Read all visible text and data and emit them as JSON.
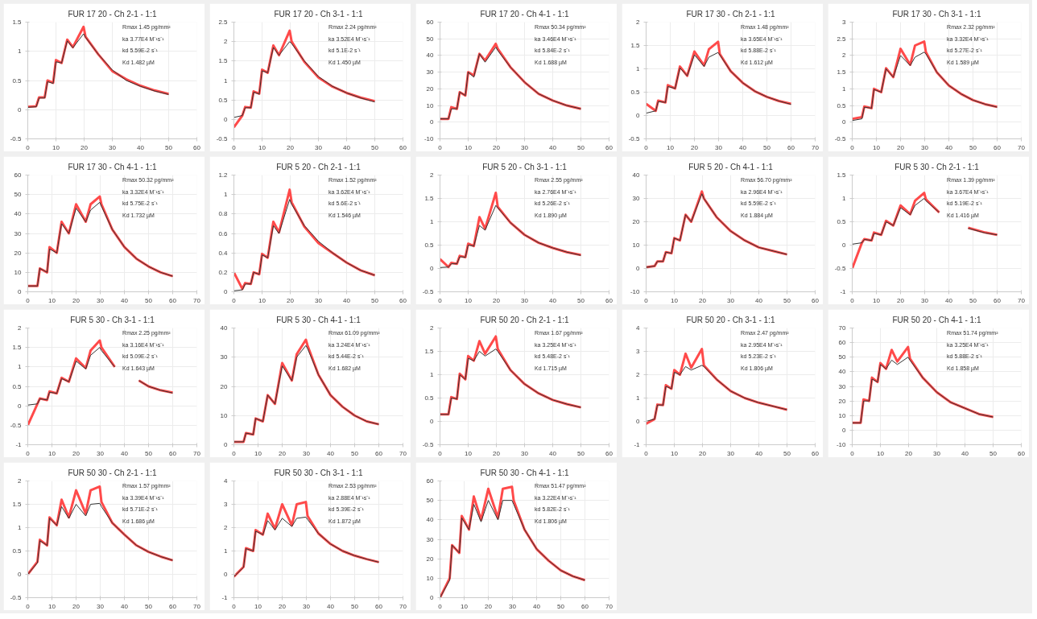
{
  "chart_data": [
    {
      "type": "line",
      "title": "FUR 17 20 - Ch 2-1 - 1:1",
      "xlim": [
        0,
        60
      ],
      "xticks": [
        0,
        10,
        20,
        30,
        40,
        50,
        60
      ],
      "ylim": [
        -0.5,
        1.5
      ],
      "yticks": [
        -0.5,
        0,
        0.5,
        1,
        1.5
      ],
      "grid": true,
      "annotations": [
        "Rmax 1.45 pg/mm²",
        "ka 3.77E4 M⁻¹s⁻¹",
        "kd 5.59E-2 s⁻¹",
        "Kd 1.482 µM"
      ],
      "x": [
        0,
        3,
        4,
        6,
        7,
        9,
        10,
        12,
        14,
        16,
        19.8,
        20.5,
        25,
        30,
        35,
        40,
        45,
        50
      ],
      "series": [
        {
          "color": "#ff4a4a",
          "values": [
            0.05,
            0.06,
            0.21,
            0.21,
            0.5,
            0.46,
            0.85,
            0.8,
            1.2,
            1.07,
            1.42,
            1.25,
            0.95,
            0.66,
            0.52,
            0.41,
            0.33,
            0.27
          ]
        },
        {
          "color": "#333333",
          "values": [
            0.04,
            0.05,
            0.2,
            0.2,
            0.48,
            0.45,
            0.82,
            0.8,
            1.18,
            1.06,
            1.3,
            1.24,
            0.95,
            0.68,
            0.5,
            0.4,
            0.32,
            0.26
          ]
        }
      ]
    },
    {
      "type": "line",
      "title": "FUR 17 20 - Ch 3-1 - 1:1",
      "xlim": [
        0,
        60
      ],
      "xticks": [
        0,
        10,
        20,
        30,
        40,
        50,
        60
      ],
      "ylim": [
        -0.5,
        2.5
      ],
      "yticks": [
        -0.5,
        0,
        0.5,
        1,
        1.5,
        2,
        2.5
      ],
      "grid": true,
      "annotations": [
        "Rmax 2.24 pg/mm²",
        "ka 3.52E4 M⁻¹s⁻¹",
        "kd 5.1E-2 s⁻¹",
        "Kd 1.450 µM"
      ],
      "x": [
        0,
        3,
        4,
        6,
        7,
        9,
        10,
        12,
        14,
        16,
        19.8,
        20.5,
        25,
        30,
        35,
        40,
        45,
        50
      ],
      "series": [
        {
          "color": "#ff4a4a",
          "values": [
            -0.2,
            0.1,
            0.32,
            0.3,
            0.72,
            0.66,
            1.28,
            1.2,
            1.9,
            1.65,
            2.28,
            2.0,
            1.48,
            1.08,
            0.84,
            0.68,
            0.56,
            0.47
          ]
        },
        {
          "color": "#333333",
          "values": [
            0.05,
            0.1,
            0.3,
            0.3,
            0.7,
            0.65,
            1.25,
            1.2,
            1.85,
            1.65,
            2.0,
            1.95,
            1.5,
            1.1,
            0.85,
            0.68,
            0.55,
            0.45
          ]
        }
      ]
    },
    {
      "type": "line",
      "title": "FUR 17 20 - Ch 4-1 - 1:1",
      "xlim": [
        0,
        60
      ],
      "xticks": [
        0,
        10,
        20,
        30,
        40,
        50,
        60
      ],
      "ylim": [
        -10,
        60
      ],
      "yticks": [
        -10,
        0,
        10,
        20,
        30,
        40,
        50,
        60
      ],
      "grid": true,
      "annotations": [
        "Rmax 50.34 pg/mm²",
        "ka 3.46E4 M⁻¹s⁻¹",
        "kd 5.84E-2 s⁻¹",
        "Kd 1.688 µM"
      ],
      "x": [
        0,
        3,
        4,
        6,
        7,
        9,
        10,
        12,
        14,
        16,
        19.8,
        20.5,
        25,
        30,
        35,
        40,
        45,
        50
      ],
      "series": [
        {
          "color": "#ff4a4a",
          "values": [
            2,
            2,
            9,
            8,
            18,
            16,
            30,
            28,
            41,
            37,
            47,
            44,
            33,
            24,
            17,
            13,
            10,
            8
          ]
        },
        {
          "color": "#333333",
          "values": [
            2,
            2,
            8,
            8,
            18,
            16,
            30,
            27,
            41,
            36,
            45,
            43,
            33,
            24,
            17,
            13,
            10,
            8
          ]
        }
      ]
    },
    {
      "type": "line",
      "title": "FUR 17 30 - Ch 2-1 - 1:1",
      "xlim": [
        0,
        70
      ],
      "xticks": [
        0,
        10,
        20,
        30,
        40,
        50,
        60,
        70
      ],
      "ylim": [
        -0.5,
        2
      ],
      "yticks": [
        -0.5,
        0,
        0.5,
        1,
        1.5,
        2
      ],
      "grid": true,
      "annotations": [
        "Rmax 1.48 pg/mm²",
        "ka 3.65E4 M⁻¹s⁻¹",
        "kd 5.88E-2 s⁻¹",
        "Kd 1.612 µM"
      ],
      "x": [
        0,
        4,
        5,
        8,
        9,
        12,
        14,
        17,
        20,
        24,
        26,
        29.8,
        30.5,
        35,
        40,
        45,
        50,
        55,
        60
      ],
      "series": [
        {
          "color": "#ff4a4a",
          "values": [
            0.25,
            0.1,
            0.32,
            0.28,
            0.65,
            0.58,
            1.05,
            0.85,
            1.37,
            1.07,
            1.42,
            1.58,
            1.32,
            0.95,
            0.7,
            0.52,
            0.4,
            0.31,
            0.25
          ]
        },
        {
          "color": "#333333",
          "values": [
            0.05,
            0.1,
            0.3,
            0.28,
            0.62,
            0.58,
            1.02,
            0.85,
            1.3,
            1.05,
            1.25,
            1.35,
            1.3,
            0.95,
            0.7,
            0.52,
            0.4,
            0.31,
            0.24
          ]
        }
      ]
    },
    {
      "type": "line",
      "title": "FUR 17 30 - Ch 3-1 - 1:1",
      "xlim": [
        0,
        70
      ],
      "xticks": [
        0,
        10,
        20,
        30,
        40,
        50,
        60,
        70
      ],
      "ylim": [
        -0.5,
        3
      ],
      "yticks": [
        -0.5,
        0,
        0.5,
        1,
        1.5,
        2,
        2.5,
        3
      ],
      "grid": true,
      "annotations": [
        "Rmax 2.32 pg/mm²",
        "ka 3.32E4 M⁻¹s⁻¹",
        "kd 5.27E-2 s⁻¹",
        "Kd 1.589 µM"
      ],
      "x": [
        0,
        4,
        5,
        8,
        9,
        12,
        14,
        17,
        20,
        24,
        26,
        29.8,
        30.5,
        35,
        40,
        45,
        50,
        55,
        60
      ],
      "series": [
        {
          "color": "#ff4a4a",
          "values": [
            0.1,
            0.15,
            0.47,
            0.42,
            1.0,
            0.9,
            1.62,
            1.35,
            2.2,
            1.72,
            2.3,
            2.42,
            2.1,
            1.5,
            1.1,
            0.85,
            0.66,
            0.54,
            0.46
          ]
        },
        {
          "color": "#333333",
          "values": [
            0.05,
            0.1,
            0.45,
            0.42,
            0.98,
            0.9,
            1.6,
            1.35,
            2.0,
            1.7,
            1.95,
            2.1,
            2.05,
            1.5,
            1.1,
            0.85,
            0.66,
            0.54,
            0.45
          ]
        }
      ]
    },
    {
      "type": "line",
      "title": "FUR 17 30 - Ch 4-1 - 1:1",
      "xlim": [
        0,
        70
      ],
      "xticks": [
        0,
        10,
        20,
        30,
        40,
        50,
        60,
        70
      ],
      "ylim": [
        0,
        60
      ],
      "yticks": [
        0,
        10,
        20,
        30,
        40,
        50,
        60
      ],
      "grid": true,
      "annotations": [
        "Rmax 50.32 pg/mm²",
        "ka 3.32E4 M⁻¹s⁻¹",
        "kd 5.75E-2 s⁻¹",
        "Kd 1.732 µM"
      ],
      "x": [
        0,
        4,
        5,
        8,
        9,
        12,
        14,
        17,
        20,
        24,
        26,
        29.8,
        30.5,
        35,
        40,
        45,
        50,
        55,
        60
      ],
      "series": [
        {
          "color": "#ff4a4a",
          "values": [
            3,
            3,
            12,
            10,
            23,
            20,
            36,
            30,
            45,
            36,
            45,
            49,
            45,
            32,
            23,
            17,
            13,
            10,
            8
          ]
        },
        {
          "color": "#333333",
          "values": [
            3,
            3,
            12,
            10,
            22,
            20,
            35,
            30,
            43,
            36,
            42,
            46,
            44,
            32,
            23,
            17,
            13,
            10,
            8
          ]
        }
      ]
    },
    {
      "type": "line",
      "title": "FUR 5 20 - Ch 2-1 - 1:1",
      "xlim": [
        0,
        60
      ],
      "xticks": [
        0,
        10,
        20,
        30,
        40,
        50,
        60
      ],
      "ylim": [
        0,
        1.2
      ],
      "yticks": [
        0,
        0.2,
        0.4,
        0.6,
        0.8,
        1,
        1.2
      ],
      "grid": true,
      "annotations": [
        "Rmax 1.52 pg/mm²",
        "ka 3.62E4 M⁻¹s⁻¹",
        "kd 5.6E-2 s⁻¹",
        "Kd 1.546 µM"
      ],
      "x": [
        0,
        3,
        4,
        6,
        7,
        9,
        10,
        12,
        14,
        16,
        19.8,
        20.5,
        25,
        30,
        35,
        40,
        45,
        50
      ],
      "series": [
        {
          "color": "#ff4a4a",
          "values": [
            0.2,
            0.03,
            0.09,
            0.08,
            0.2,
            0.18,
            0.39,
            0.35,
            0.72,
            0.61,
            1.05,
            0.92,
            0.67,
            0.5,
            0.4,
            0.3,
            0.22,
            0.17
          ]
        },
        {
          "color": "#333333",
          "values": [
            0.01,
            0.02,
            0.08,
            0.08,
            0.2,
            0.18,
            0.38,
            0.35,
            0.68,
            0.6,
            0.95,
            0.9,
            0.68,
            0.52,
            0.4,
            0.3,
            0.22,
            0.17
          ]
        }
      ]
    },
    {
      "type": "line",
      "title": "FUR 5 20 - Ch 3-1 - 1:1",
      "xlim": [
        0,
        60
      ],
      "xticks": [
        0,
        10,
        20,
        30,
        40,
        50,
        60
      ],
      "ylim": [
        -0.5,
        2
      ],
      "yticks": [
        -0.5,
        0,
        0.5,
        1,
        1.5,
        2
      ],
      "grid": true,
      "annotations": [
        "Rmax 2.55 pg/mm²",
        "ka 2.76E4 M⁻¹s⁻¹",
        "kd 5.26E-2 s⁻¹",
        "Kd 1.890 µM"
      ],
      "x": [
        0,
        3,
        4,
        6,
        7,
        9,
        10,
        12,
        14,
        16,
        19.8,
        20.5,
        25,
        30,
        35,
        40,
        45,
        50
      ],
      "series": [
        {
          "color": "#ff4a4a",
          "values": [
            0.2,
            0.03,
            0.12,
            0.1,
            0.27,
            0.24,
            0.53,
            0.48,
            1.1,
            0.85,
            1.62,
            1.32,
            0.98,
            0.72,
            0.55,
            0.44,
            0.35,
            0.29
          ]
        },
        {
          "color": "#333333",
          "values": [
            0.02,
            0.03,
            0.1,
            0.1,
            0.25,
            0.24,
            0.5,
            0.48,
            0.92,
            0.82,
            1.35,
            1.3,
            0.98,
            0.72,
            0.55,
            0.44,
            0.35,
            0.28
          ]
        }
      ]
    },
    {
      "type": "line",
      "title": "FUR 5 20 - Ch 4-1 - 1:1",
      "xlim": [
        0,
        60
      ],
      "xticks": [
        0,
        10,
        20,
        30,
        40,
        50,
        60
      ],
      "ylim": [
        -10,
        40
      ],
      "yticks": [
        -10,
        0,
        10,
        20,
        30,
        40
      ],
      "grid": true,
      "annotations": [
        "Rmax 56.70 pg/mm²",
        "ka 2.96E4 M⁻¹s⁻¹",
        "kd 5.59E-2 s⁻¹",
        "Kd 1.884 µM"
      ],
      "x": [
        0,
        3,
        4,
        6,
        7,
        9,
        10,
        12,
        14,
        16,
        19.8,
        20.5,
        25,
        30,
        35,
        40,
        45,
        50
      ],
      "series": [
        {
          "color": "#ff4a4a",
          "values": [
            0.5,
            1,
            3,
            3,
            7,
            6.5,
            13,
            12,
            23,
            20,
            33,
            30,
            22,
            16,
            12,
            9,
            7.5,
            6
          ]
        },
        {
          "color": "#333333",
          "values": [
            0.5,
            1,
            3,
            3,
            7,
            6.5,
            13,
            12,
            23,
            20,
            32,
            30,
            22,
            16,
            12,
            9,
            7.5,
            6
          ]
        }
      ]
    },
    {
      "type": "line",
      "title": "FUR 5 30 - Ch 2-1 - 1:1",
      "xlim": [
        0,
        70
      ],
      "xticks": [
        0,
        10,
        20,
        30,
        40,
        50,
        60,
        70
      ],
      "ylim": [
        -1,
        1.5
      ],
      "yticks": [
        -1,
        -0.5,
        0,
        0.5,
        1,
        1.5
      ],
      "grid": true,
      "annotations": [
        "Rmax 1.39 pg/mm²",
        "ka 3.67E4 M⁻¹s⁻¹",
        "kd 5.19E-2 s⁻¹",
        "Kd 1.416 µM"
      ],
      "x": [
        0,
        4,
        5,
        8,
        9,
        12,
        14,
        17,
        20,
        24,
        26,
        29.8,
        30.5,
        36,
        40,
        45,
        48,
        55,
        60
      ],
      "series": [
        {
          "color": "#ff4a4a",
          "values": [
            -0.5,
            0.05,
            0.13,
            0.1,
            0.27,
            0.22,
            0.52,
            0.42,
            0.85,
            0.66,
            0.95,
            1.12,
            0.98,
            0.7,
            null,
            null,
            0.37,
            0.27,
            0.22
          ]
        },
        {
          "color": "#333333",
          "values": [
            0.02,
            0.05,
            0.12,
            0.1,
            0.25,
            0.22,
            0.5,
            0.42,
            0.8,
            0.65,
            0.85,
            1.0,
            0.95,
            0.7,
            null,
            null,
            0.36,
            0.26,
            0.22
          ]
        }
      ]
    },
    {
      "type": "line",
      "title": "FUR 5 30 - Ch 3-1 - 1:1",
      "xlim": [
        0,
        70
      ],
      "xticks": [
        0,
        10,
        20,
        30,
        40,
        50,
        60,
        70
      ],
      "ylim": [
        -1,
        2
      ],
      "yticks": [
        -1,
        -0.5,
        0,
        0.5,
        1,
        1.5,
        2
      ],
      "grid": true,
      "annotations": [
        "Rmax 2.25 pg/mm²",
        "ka 3.16E4 M⁻¹s⁻¹",
        "kd 5.09E-2 s⁻¹",
        "Kd 1.643 µM"
      ],
      "x": [
        0,
        4,
        5,
        8,
        9,
        12,
        14,
        17,
        20,
        24,
        26,
        29.8,
        30.5,
        36,
        40,
        46,
        50,
        55,
        60
      ],
      "series": [
        {
          "color": "#ff4a4a",
          "values": [
            -0.5,
            0.05,
            0.19,
            0.15,
            0.37,
            0.32,
            0.72,
            0.62,
            1.22,
            0.97,
            1.42,
            1.68,
            1.5,
            1.0,
            null,
            0.65,
            0.5,
            0.4,
            0.34
          ]
        },
        {
          "color": "#333333",
          "values": [
            0.02,
            0.05,
            0.18,
            0.15,
            0.35,
            0.32,
            0.7,
            0.62,
            1.15,
            0.95,
            1.3,
            1.5,
            1.42,
            1.0,
            null,
            0.65,
            0.5,
            0.4,
            0.33
          ]
        }
      ]
    },
    {
      "type": "line",
      "title": "FUR 5 30 - Ch 4-1 - 1:1",
      "xlim": [
        0,
        70
      ],
      "xticks": [
        0,
        10,
        20,
        30,
        40,
        50,
        60,
        70
      ],
      "ylim": [
        0,
        40
      ],
      "yticks": [
        0,
        10,
        20,
        30,
        40
      ],
      "grid": true,
      "annotations": [
        "Rmax 61.09 pg/mm²",
        "ka 3.24E4 M⁻¹s⁻¹",
        "kd 5.44E-2 s⁻¹",
        "Kd 1.682 µM"
      ],
      "x": [
        0,
        4,
        5,
        8,
        9,
        12,
        14,
        17,
        20,
        24,
        26,
        29.8,
        30.5,
        35,
        40,
        45,
        50,
        55,
        60
      ],
      "series": [
        {
          "color": "#ff4a4a",
          "values": [
            1,
            1,
            4,
            3.5,
            9,
            8,
            17,
            14,
            28,
            22,
            31,
            36,
            34,
            24,
            17,
            13,
            10,
            8,
            7
          ]
        },
        {
          "color": "#333333",
          "values": [
            1,
            1,
            4,
            3.5,
            9,
            8,
            17,
            14,
            27,
            22,
            30,
            34,
            33,
            24,
            17,
            13,
            10,
            8,
            7
          ]
        }
      ]
    },
    {
      "type": "line",
      "title": "FUR 50 20 - Ch 2-1 - 1:1",
      "xlim": [
        0,
        60
      ],
      "xticks": [
        0,
        10,
        20,
        30,
        40,
        50,
        60
      ],
      "ylim": [
        -0.5,
        2
      ],
      "yticks": [
        -0.5,
        0,
        0.5,
        1,
        1.5,
        2
      ],
      "grid": true,
      "annotations": [
        "Rmax 1.67 pg/mm²",
        "ka 3.25E4 M⁻¹s⁻¹",
        "kd 5.48E-2 s⁻¹",
        "Kd 1.715 µM"
      ],
      "x": [
        0,
        3,
        4,
        6,
        7,
        9,
        10,
        12,
        14,
        16,
        19.8,
        20.5,
        25,
        30,
        35,
        40,
        45,
        50
      ],
      "series": [
        {
          "color": "#ff4a4a",
          "values": [
            0.15,
            0.15,
            0.52,
            0.48,
            1.02,
            0.9,
            1.4,
            1.3,
            1.72,
            1.45,
            1.82,
            1.55,
            1.1,
            0.8,
            0.6,
            0.46,
            0.37,
            0.3
          ]
        },
        {
          "color": "#333333",
          "values": [
            0.15,
            0.15,
            0.5,
            0.48,
            1.0,
            0.9,
            1.35,
            1.3,
            1.5,
            1.4,
            1.55,
            1.5,
            1.1,
            0.8,
            0.6,
            0.46,
            0.37,
            0.3
          ]
        }
      ]
    },
    {
      "type": "line",
      "title": "FUR 50 20 - Ch 3-1 - 1:1",
      "xlim": [
        0,
        60
      ],
      "xticks": [
        0,
        10,
        20,
        30,
        40,
        50,
        60
      ],
      "ylim": [
        -1,
        4
      ],
      "yticks": [
        -1,
        0,
        1,
        2,
        3,
        4
      ],
      "grid": true,
      "annotations": [
        "Rmax 2.47 pg/mm²",
        "ka 2.95E4 M⁻¹s⁻¹",
        "kd 5.23E-2 s⁻¹",
        "Kd 1.806 µM"
      ],
      "x": [
        0,
        3,
        4,
        6,
        7,
        9,
        10,
        12,
        14,
        16,
        19.8,
        20.5,
        25,
        30,
        35,
        40,
        45,
        50
      ],
      "series": [
        {
          "color": "#ff4a4a",
          "values": [
            -0.1,
            0.1,
            0.72,
            0.7,
            1.55,
            1.4,
            2.2,
            2.0,
            2.9,
            2.3,
            3.1,
            2.4,
            1.8,
            1.3,
            1.0,
            0.8,
            0.65,
            0.5
          ]
        },
        {
          "color": "#333333",
          "values": [
            0,
            0.1,
            0.7,
            0.7,
            1.5,
            1.4,
            2.1,
            2.0,
            2.35,
            2.2,
            2.4,
            2.35,
            1.8,
            1.3,
            1.0,
            0.8,
            0.65,
            0.5
          ]
        }
      ]
    },
    {
      "type": "line",
      "title": "FUR 50 20 - Ch 4-1 - 1:1",
      "xlim": [
        0,
        60
      ],
      "xticks": [
        0,
        10,
        20,
        30,
        40,
        50,
        60
      ],
      "ylim": [
        -10,
        70
      ],
      "yticks": [
        -10,
        0,
        10,
        20,
        30,
        40,
        50,
        60,
        70
      ],
      "grid": true,
      "annotations": [
        "Rmax 51.74 pg/mm²",
        "ka 3.25E4 M⁻¹s⁻¹",
        "kd 5.88E-2 s⁻¹",
        "Kd 1.858 µM"
      ],
      "x": [
        0,
        3,
        4,
        6,
        7,
        9,
        10,
        12,
        14,
        16,
        19.8,
        20.5,
        25,
        30,
        35,
        40,
        45,
        50
      ],
      "series": [
        {
          "color": "#ff4a4a",
          "values": [
            5,
            5,
            21,
            20,
            36,
            33,
            46,
            42,
            55,
            47,
            57,
            49,
            36,
            26,
            19,
            15,
            11,
            9
          ]
        },
        {
          "color": "#333333",
          "values": [
            5,
            5,
            20,
            20,
            35,
            33,
            45,
            42,
            48,
            45,
            50,
            48,
            36,
            26,
            19,
            15,
            11,
            9
          ]
        }
      ]
    },
    {
      "type": "line",
      "title": "FUR 50 30 - Ch 2-1 - 1:1",
      "xlim": [
        0,
        70
      ],
      "xticks": [
        0,
        10,
        20,
        30,
        40,
        50,
        60,
        70
      ],
      "ylim": [
        -0.5,
        2
      ],
      "yticks": [
        -0.5,
        0,
        0.5,
        1,
        1.5,
        2
      ],
      "grid": true,
      "annotations": [
        "Rmax 1.57 pg/mm²",
        "ka 3.39E4 M⁻¹s⁻¹",
        "kd 5.71E-2 s⁻¹",
        "Kd 1.686 µM"
      ],
      "x": [
        0,
        4,
        5,
        8,
        9,
        12,
        14,
        17,
        20,
        24,
        26,
        29.8,
        30.5,
        35,
        40,
        45,
        50,
        55,
        60
      ],
      "series": [
        {
          "color": "#ff4a4a",
          "values": [
            0,
            0.27,
            0.74,
            0.62,
            1.22,
            1.05,
            1.6,
            1.22,
            1.8,
            1.3,
            1.8,
            1.88,
            1.55,
            1.1,
            0.85,
            0.62,
            0.48,
            0.38,
            0.3
          ]
        },
        {
          "color": "#333333",
          "values": [
            0,
            0.25,
            0.72,
            0.62,
            1.2,
            1.05,
            1.45,
            1.2,
            1.5,
            1.25,
            1.5,
            1.52,
            1.45,
            1.1,
            0.85,
            0.62,
            0.48,
            0.38,
            0.3
          ]
        }
      ]
    },
    {
      "type": "line",
      "title": "FUR 50 30 - Ch 3-1 - 1:1",
      "xlim": [
        0,
        70
      ],
      "xticks": [
        0,
        10,
        20,
        30,
        40,
        50,
        60,
        70
      ],
      "ylim": [
        -1,
        4
      ],
      "yticks": [
        -1,
        0,
        1,
        2,
        3,
        4
      ],
      "grid": true,
      "annotations": [
        "Rmax 2.53 pg/mm²",
        "ka 2.88E4 M⁻¹s⁻¹",
        "kd 5.39E-2 s⁻¹",
        "Kd 1.872 µM"
      ],
      "x": [
        0,
        4,
        5,
        8,
        9,
        12,
        14,
        17,
        20,
        24,
        26,
        29.8,
        30.5,
        35,
        40,
        45,
        50,
        55,
        60
      ],
      "series": [
        {
          "color": "#ff4a4a",
          "values": [
            -0.1,
            0.32,
            1.12,
            1.0,
            1.9,
            1.7,
            2.6,
            1.95,
            3.0,
            2.1,
            3.0,
            3.1,
            2.5,
            1.75,
            1.3,
            1.0,
            0.8,
            0.65,
            0.52
          ]
        },
        {
          "color": "#333333",
          "values": [
            -0.1,
            0.3,
            1.1,
            1.0,
            1.85,
            1.7,
            2.3,
            1.9,
            2.4,
            2.05,
            2.4,
            2.45,
            2.35,
            1.75,
            1.3,
            1.0,
            0.8,
            0.65,
            0.52
          ]
        }
      ]
    },
    {
      "type": "line",
      "title": "FUR 50 30 - Ch 4-1 - 1:1",
      "xlim": [
        0,
        70
      ],
      "xticks": [
        0,
        10,
        20,
        30,
        40,
        50,
        60,
        70
      ],
      "ylim": [
        0,
        60
      ],
      "yticks": [
        0,
        10,
        20,
        30,
        40,
        50,
        60
      ],
      "grid": true,
      "annotations": [
        "Rmax 51.47 pg/mm²",
        "ka 3.22E4 M⁻¹s⁻¹",
        "kd 5.82E-2 s⁻¹",
        "Kd 1.806 µM"
      ],
      "x": [
        0,
        4,
        5,
        8,
        9,
        12,
        14,
        17,
        20,
        24,
        26,
        29.8,
        30.5,
        35,
        40,
        45,
        50,
        55,
        60
      ],
      "series": [
        {
          "color": "#ff4a4a",
          "values": [
            0,
            10,
            27,
            23,
            42,
            35,
            52,
            40,
            56,
            41,
            56,
            57,
            50,
            35,
            25,
            19,
            14,
            11,
            9
          ]
        },
        {
          "color": "#333333",
          "values": [
            0,
            9,
            27,
            23,
            41,
            35,
            48,
            39,
            50,
            40,
            50,
            50,
            48,
            35,
            25,
            19,
            14,
            11,
            9
          ]
        }
      ]
    }
  ]
}
